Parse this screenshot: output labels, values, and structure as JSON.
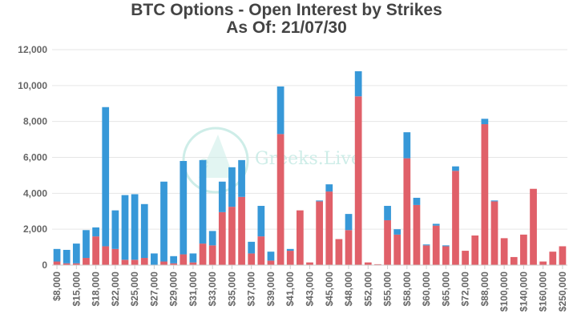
{
  "chart_data": {
    "type": "bar",
    "stacked": true,
    "title": "BTC Options - Open Interest by Strikes",
    "subtitle": "As Of: 21/07/30",
    "ylim": [
      0,
      12000
    ],
    "y_ticks": [
      "0",
      "2,000",
      "4,000",
      "6,000",
      "8,000",
      "10,000",
      "12,000"
    ],
    "x_tick_labels": [
      "$8,000",
      "$15,000",
      "$18,000",
      "$22,000",
      "$25,000",
      "$27,000",
      "$29,000",
      "$31,000",
      "$33,000",
      "$35,000",
      "$37,000",
      "$39,000",
      "$41,000",
      "$43,000",
      "$45,000",
      "$48,000",
      "$52,000",
      "$55,000",
      "$58,000",
      "$60,000",
      "$65,000",
      "$72,000",
      "$88,000",
      "$100,000",
      "$140,000",
      "$160,000",
      "$250,000",
      "$400,000"
    ],
    "grid": true,
    "series": [
      {
        "color": "#e06069",
        "values": [
          200,
          100,
          100,
          400,
          1600,
          1050,
          900,
          300,
          300,
          400,
          0,
          200,
          100,
          600,
          150,
          1200,
          1100,
          2950,
          3250,
          3800,
          650,
          1600,
          250,
          7300,
          800,
          3050,
          150,
          3550,
          4100,
          1450,
          1950,
          9400,
          150,
          50,
          2500,
          1700,
          5950,
          3350,
          1100,
          2200,
          1050,
          5250,
          800,
          1650,
          7850,
          3550,
          1500,
          450,
          1700,
          4250,
          200,
          750,
          1050
        ]
      },
      {
        "color": "#3798d8",
        "values": [
          700,
          750,
          1100,
          1550,
          500,
          7750,
          2150,
          3600,
          3650,
          3000,
          650,
          4450,
          400,
          5200,
          500,
          4650,
          800,
          1700,
          2200,
          2050,
          650,
          1700,
          500,
          2650,
          100,
          0,
          0,
          50,
          400,
          0,
          900,
          1400,
          0,
          0,
          800,
          300,
          1450,
          400,
          50,
          100,
          50,
          250,
          0,
          0,
          300,
          50,
          0,
          0,
          0,
          0,
          0,
          0,
          0
        ]
      }
    ]
  },
  "watermark": {
    "text": "Greeks.Live",
    "letter": "e",
    "color": "#c9ece6"
  },
  "colors": {
    "axis": "#cccccc",
    "grid": "#e6e6e6",
    "tick_text": "#666666",
    "title_text": "#444444"
  }
}
